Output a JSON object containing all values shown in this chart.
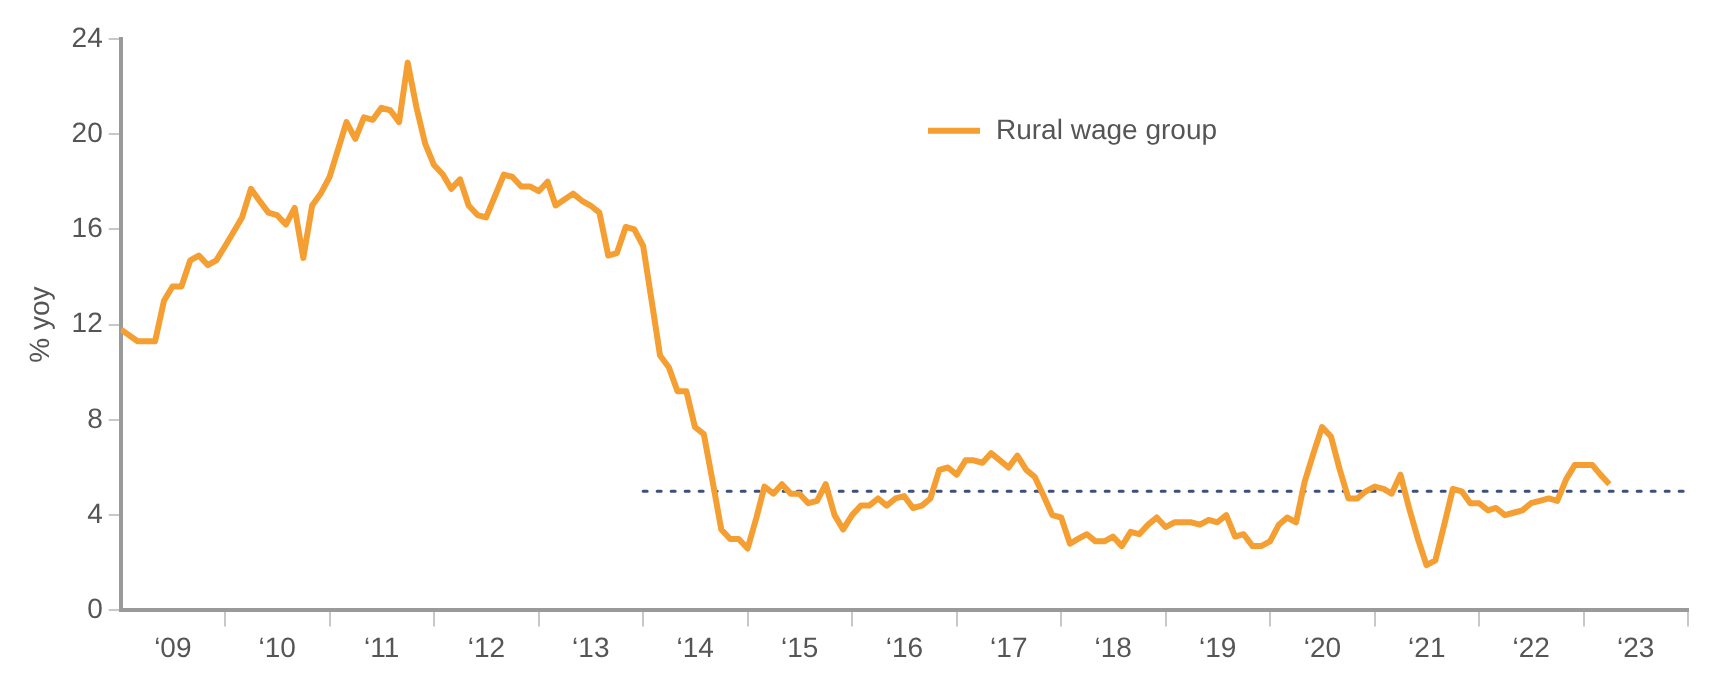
{
  "chart_data": {
    "type": "line",
    "ylabel": "% yoy",
    "legend": "top right",
    "marker": "none",
    "xlim": [
      "2009-01",
      "2024-01"
    ],
    "ylim": [
      0,
      24
    ],
    "yticks": [
      0,
      4,
      8,
      12,
      16,
      20,
      24
    ],
    "xticks": [
      {
        "value": "2009-07-02",
        "label": "‘09"
      },
      {
        "value": "2010-01",
        "label": null
      },
      {
        "value": "2010-07-02",
        "label": "‘10"
      },
      {
        "value": "2011-01",
        "label": null
      },
      {
        "value": "2011-07-02",
        "label": "‘11"
      },
      {
        "value": "2012-01",
        "label": null
      },
      {
        "value": "2012-07-02",
        "label": "‘12"
      },
      {
        "value": "2013-01",
        "label": null
      },
      {
        "value": "2013-07-02",
        "label": "‘13"
      },
      {
        "value": "2014-01",
        "label": null
      },
      {
        "value": "2014-07-02",
        "label": "‘14"
      },
      {
        "value": "2015-01",
        "label": null
      },
      {
        "value": "2015-07-02",
        "label": "‘15"
      },
      {
        "value": "2016-01",
        "label": null
      },
      {
        "value": "2016-07-02",
        "label": "‘16"
      },
      {
        "value": "2017-01",
        "label": null
      },
      {
        "value": "2017-07-02",
        "label": "‘17"
      },
      {
        "value": "2018-01",
        "label": null
      },
      {
        "value": "2018-07-02",
        "label": "‘18"
      },
      {
        "value": "2019-01",
        "label": null
      },
      {
        "value": "2019-07-02",
        "label": "‘19"
      },
      {
        "value": "2020-01",
        "label": null
      },
      {
        "value": "2020-07-02",
        "label": "‘20"
      },
      {
        "value": "2021-01",
        "label": null
      },
      {
        "value": "2021-07-02",
        "label": "‘21"
      },
      {
        "value": "2022-01",
        "label": null
      },
      {
        "value": "2022-07-02",
        "label": "‘22"
      },
      {
        "value": "2023-01",
        "label": null
      },
      {
        "value": "2023-07-02",
        "label": "‘23"
      },
      {
        "value": "2024-01",
        "label": null
      }
    ],
    "series": [
      {
        "name": "Rural wage group",
        "color": "#f59e32",
        "line_style": "solid",
        "x": [
          "2009-01",
          "2009-03",
          "2009-05",
          "2009-06",
          "2009-07",
          "2009-08",
          "2009-09",
          "2009-10",
          "2009-11",
          "2009-12",
          "2010-01",
          "2010-03",
          "2010-04",
          "2010-05",
          "2010-06",
          "2010-07",
          "2010-08",
          "2010-09",
          "2010-10",
          "2010-11",
          "2010-12",
          "2011-01",
          "2011-03",
          "2011-04",
          "2011-05",
          "2011-06",
          "2011-07",
          "2011-08",
          "2011-09",
          "2011-10",
          "2011-11",
          "2011-12",
          "2012-01",
          "2012-02",
          "2012-03",
          "2012-04",
          "2012-05",
          "2012-06",
          "2012-07",
          "2012-08",
          "2012-09",
          "2012-10",
          "2012-11",
          "2012-12",
          "2013-01",
          "2013-02",
          "2013-03",
          "2013-05",
          "2013-06",
          "2013-07",
          "2013-08",
          "2013-09",
          "2013-10",
          "2013-11",
          "2013-12",
          "2014-01",
          "2014-02",
          "2014-03",
          "2014-04",
          "2014-05",
          "2014-06",
          "2014-07",
          "2014-08",
          "2014-09",
          "2014-10",
          "2014-11",
          "2014-12",
          "2015-01",
          "2015-02",
          "2015-03",
          "2015-04",
          "2015-05",
          "2015-06",
          "2015-07",
          "2015-08",
          "2015-09",
          "2015-10",
          "2015-11",
          "2015-12",
          "2016-01",
          "2016-02",
          "2016-03",
          "2016-04",
          "2016-05",
          "2016-06",
          "2016-07",
          "2016-08",
          "2016-09",
          "2016-10",
          "2016-11",
          "2016-12",
          "2017-01",
          "2017-02",
          "2017-03",
          "2017-04",
          "2017-05",
          "2017-06",
          "2017-07",
          "2017-08",
          "2017-09",
          "2017-10",
          "2017-11",
          "2017-12",
          "2018-01",
          "2018-02",
          "2018-03",
          "2018-04",
          "2018-05",
          "2018-06",
          "2018-07",
          "2018-08",
          "2018-09",
          "2018-10",
          "2018-11",
          "2018-12",
          "2019-01",
          "2019-02",
          "2019-03",
          "2019-04",
          "2019-05",
          "2019-06",
          "2019-07",
          "2019-08",
          "2019-09",
          "2019-10",
          "2019-11",
          "2019-12",
          "2020-01",
          "2020-02",
          "2020-03",
          "2020-04",
          "2020-05",
          "2020-06",
          "2020-07",
          "2020-08",
          "2020-09",
          "2020-10",
          "2020-11",
          "2020-12",
          "2021-01",
          "2021-02",
          "2021-03",
          "2021-04",
          "2021-05",
          "2021-06",
          "2021-07",
          "2021-08",
          "2021-09",
          "2021-10",
          "2021-11",
          "2021-12",
          "2022-01",
          "2022-02",
          "2022-03",
          "2022-04",
          "2022-05",
          "2022-06",
          "2022-07",
          "2022-08",
          "2022-09",
          "2022-10",
          "2022-11",
          "2022-12",
          "2023-01",
          "2023-02",
          "2023-03",
          "2023-04"
        ],
        "values": [
          11.8,
          11.3,
          11.3,
          13.0,
          13.6,
          13.6,
          14.7,
          14.9,
          14.5,
          14.7,
          15.3,
          16.5,
          17.7,
          17.2,
          16.7,
          16.6,
          16.2,
          16.9,
          14.8,
          17.0,
          17.5,
          18.2,
          20.5,
          19.8,
          20.7,
          20.6,
          21.1,
          21.0,
          20.5,
          23.0,
          21.1,
          19.6,
          18.7,
          18.3,
          17.7,
          18.1,
          17.0,
          16.6,
          16.5,
          17.4,
          18.3,
          18.2,
          17.8,
          17.8,
          17.6,
          18.0,
          17.0,
          17.5,
          17.2,
          17.0,
          16.7,
          14.9,
          15.0,
          16.1,
          16.0,
          15.3,
          12.9,
          10.7,
          10.2,
          9.2,
          9.2,
          7.7,
          7.4,
          5.4,
          3.4,
          3.0,
          3.0,
          2.6,
          3.9,
          5.2,
          4.9,
          5.3,
          4.9,
          4.9,
          4.5,
          4.6,
          5.3,
          4.0,
          3.4,
          4.0,
          4.4,
          4.4,
          4.7,
          4.4,
          4.7,
          4.8,
          4.3,
          4.4,
          4.7,
          5.9,
          6.0,
          5.7,
          6.3,
          6.3,
          6.2,
          6.6,
          6.3,
          6.0,
          6.5,
          5.9,
          5.6,
          4.8,
          4.0,
          3.9,
          2.8,
          3.0,
          3.2,
          2.9,
          2.9,
          3.1,
          2.7,
          3.3,
          3.2,
          3.6,
          3.9,
          3.5,
          3.7,
          3.7,
          3.7,
          3.6,
          3.8,
          3.7,
          4.0,
          3.1,
          3.2,
          2.7,
          2.7,
          2.9,
          3.6,
          3.9,
          3.7,
          5.4,
          6.6,
          7.7,
          7.3,
          5.9,
          4.7,
          4.7,
          5.0,
          5.2,
          5.1,
          4.9,
          5.7,
          4.3,
          3.0,
          1.9,
          2.1,
          3.6,
          5.1,
          5.0,
          4.5,
          4.5,
          4.2,
          4.3,
          4.0,
          4.1,
          4.2,
          4.5,
          4.6,
          4.7,
          4.6,
          5.5,
          6.1,
          6.1,
          6.1,
          5.7,
          5.3
        ]
      },
      {
        "color": "#3d4f7c",
        "line_style": "dotted",
        "x": [
          "2014-01",
          "2024-01"
        ],
        "values": [
          5,
          5
        ]
      }
    ]
  }
}
